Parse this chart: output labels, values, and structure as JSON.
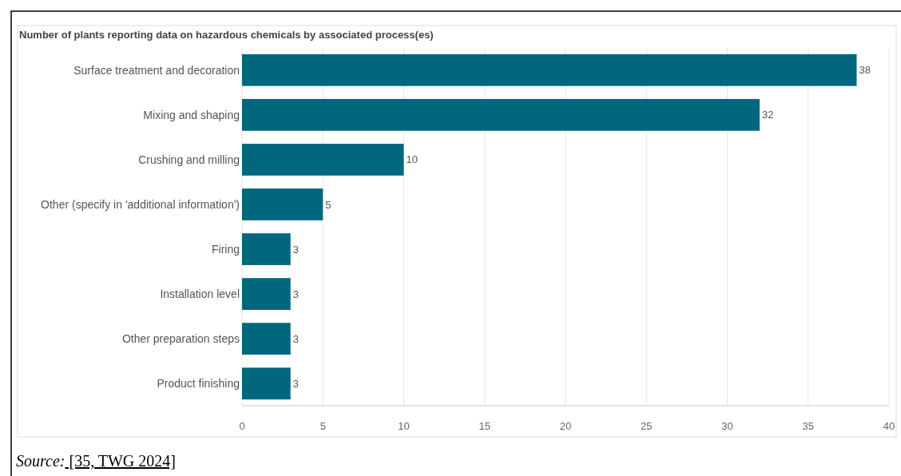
{
  "chart_data": {
    "type": "bar",
    "orientation": "horizontal",
    "title": "Number of plants reporting data on hazardous chemicals by associated process(es)",
    "categories": [
      "Surface treatment and decoration",
      "Mixing and shaping",
      "Crushing and milling",
      "Other (specify in 'additional information')",
      "Firing",
      "Installation level",
      "Other preparation steps",
      "Product finishing"
    ],
    "values": [
      38,
      32,
      10,
      5,
      3,
      3,
      3,
      3
    ],
    "color": "#00677f",
    "xlim": [
      0,
      40
    ],
    "xticks": [
      0,
      5,
      10,
      15,
      20,
      25,
      30,
      35,
      40
    ],
    "grid": "x",
    "data_labels": true,
    "annotations": [
      "Source: [35, TWG 2024]"
    ]
  }
}
